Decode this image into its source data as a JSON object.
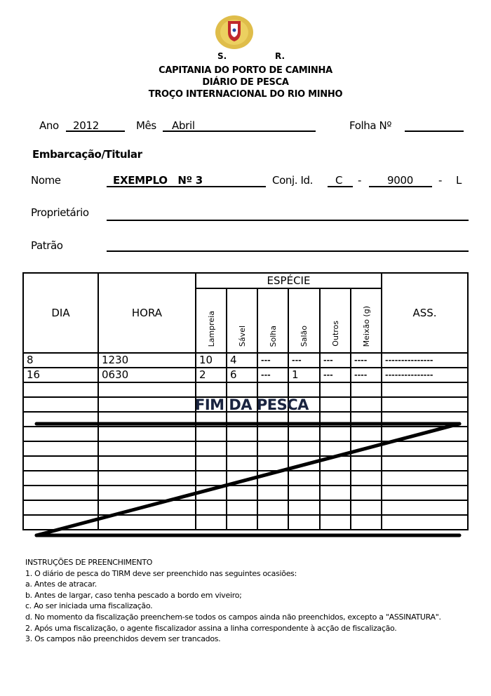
{
  "header": {
    "crest_letters": [
      "S.",
      "R."
    ],
    "line1": "CAPITANIA DO PORTO DE CAMINHA",
    "line2": "DIÁRIO DE PESCA",
    "line3": "TROÇO INTERNACIONAL DO RIO MINHO"
  },
  "fields": {
    "ano_label": "Ano",
    "ano_value": "2012",
    "mes_label": "Mês",
    "mes_value": "Abril",
    "folha_label": "Folha Nº",
    "folha_value": "",
    "section_title": "Embarcação/Titular",
    "nome_label": "Nome",
    "nome_value": "EXEMPLO   Nº 3",
    "conj_label": "Conj. Id.",
    "conj_prefix": "C",
    "conj_sep1": "-",
    "conj_number": "9000",
    "conj_sep2": "-",
    "conj_suffix": "L",
    "proprietario_label": "Proprietário",
    "proprietario_value": "",
    "patrao_label": "Patrão",
    "patrao_value": ""
  },
  "table": {
    "col_dia": "DIA",
    "col_hora": "HORA",
    "especie": "ESPÉCIE",
    "species": [
      "Lampreia",
      "Sável",
      "Solha",
      "Salão",
      "Outros",
      "Meixão (g)"
    ],
    "col_ass": "ASS.",
    "rows": [
      [
        "8",
        "1230",
        "10",
        "4",
        "---",
        "---",
        "---",
        "----",
        "---------------"
      ],
      [
        "16",
        "0630",
        "2",
        "6",
        "---",
        "1",
        "---",
        "----",
        "---------------"
      ]
    ],
    "empty_rows": 10,
    "end_text": "FIM DA PESCA"
  },
  "instructions": {
    "title": "INSTRUÇÕES DE PREENCHIMENTO",
    "lines": [
      "1. O diário de pesca do TIRM deve ser preenchido nas seguintes ocasiões:",
      "a. Antes de atracar.",
      "b. Antes de largar, caso tenha pescado a bordo em viveiro;",
      "c. Ao ser iniciada uma fiscalização.",
      "d. No momento da fiscalização preenchem-se todos os campos ainda não preenchidos, excepto a \"ASSINATURA\".",
      "2. Após uma fiscalização, o agente fiscalizador assina a linha correspondente à acção de fiscalização.",
      "3. Os campos não preenchidos devem ser trancados."
    ]
  },
  "colors": {
    "crest_gold": "#d9b22a",
    "crest_red": "#c0282a",
    "end_text": "#1a2440"
  }
}
